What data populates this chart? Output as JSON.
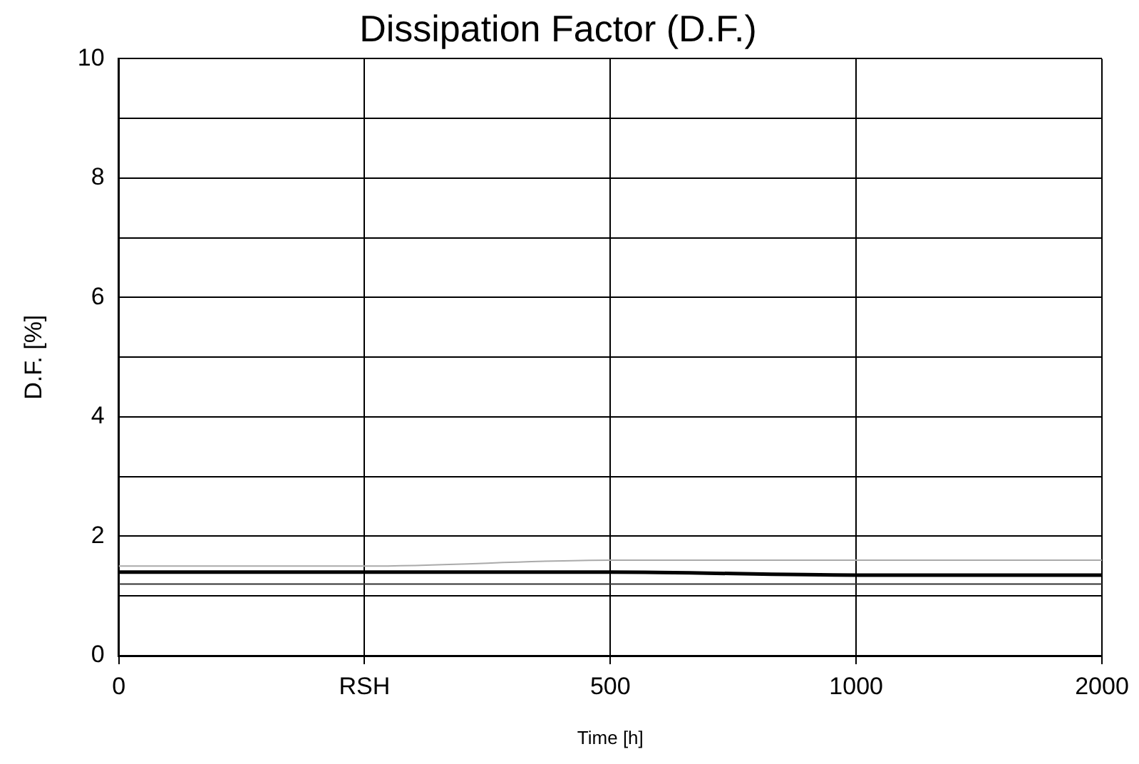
{
  "chart_data": {
    "type": "line",
    "title": "Dissipation Factor (D.F.)",
    "xlabel": "Time [h]",
    "ylabel": "D.F. [%]",
    "categories": [
      "0",
      "RSH",
      "500",
      "1000",
      "2000"
    ],
    "series": [
      {
        "color": "#aaaaaa",
        "values": [
          1.5,
          1.5,
          1.6,
          1.6,
          1.6
        ]
      },
      {
        "color": "#000000",
        "values": [
          1.4,
          1.4,
          1.4,
          1.35,
          1.35
        ]
      },
      {
        "color": "#333333",
        "values": [
          1.2,
          1.2,
          1.2,
          1.2,
          1.2
        ]
      }
    ],
    "ylim": [
      0,
      10
    ],
    "yticks": [
      0,
      {
        "value": 1,
        "label": null
      },
      2,
      {
        "value": 3,
        "label": null
      },
      4,
      {
        "value": 5,
        "label": null
      },
      6,
      {
        "value": 7,
        "label": null
      },
      8,
      {
        "value": 9,
        "label": null
      },
      10
    ],
    "grid": true,
    "legend": false,
    "marker": "none",
    "line_style": "solid"
  }
}
